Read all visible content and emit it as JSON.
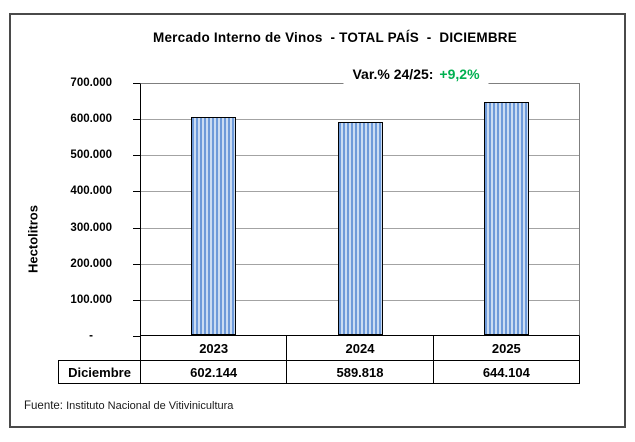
{
  "title": "Mercado Interno de Vinos  - TOTAL PAÍS  -  DICIEMBRE",
  "annotation": {
    "label": "Var.% 24/25:",
    "value": "+9,2%",
    "value_color": "#00b050"
  },
  "y_axis": {
    "label": "Hectolitros",
    "ticks": [
      "700.000",
      "600.000",
      "500.000",
      "400.000",
      "300.000",
      "200.000",
      "100.000",
      "-"
    ]
  },
  "table": {
    "row_label": "Diciembre",
    "years": [
      "2023",
      "2024",
      "2025"
    ],
    "values": [
      "602.144",
      "589.818",
      "644.104"
    ]
  },
  "footer": {
    "prefix": "Fuente:",
    "source": "Instituto Nacional de Vitivinicultura"
  },
  "colors": {
    "bar_stripe_dark": "#6e9ad9",
    "bar_stripe_light": "#cbdcf2",
    "bar_border": "#000000",
    "gridline": "#a3a3a3",
    "plot_border": "#7f7f7f",
    "annotation_green": "#00b050"
  },
  "chart_data": {
    "type": "bar",
    "title": "Mercado Interno de Vinos - TOTAL PAÍS - DICIEMBRE",
    "categories": [
      "2023",
      "2024",
      "2025"
    ],
    "values": [
      602144,
      589818,
      644104
    ],
    "value_labels": [
      "602.144",
      "589.818",
      "644.104"
    ],
    "series_label": "Diciembre",
    "xlabel": "",
    "ylabel": "Hectolitros",
    "ylim": [
      0,
      700000
    ],
    "ytick_step": 100000,
    "grid": true,
    "legend": "none",
    "annotation": "Var.% 24/25: +9,2%"
  }
}
